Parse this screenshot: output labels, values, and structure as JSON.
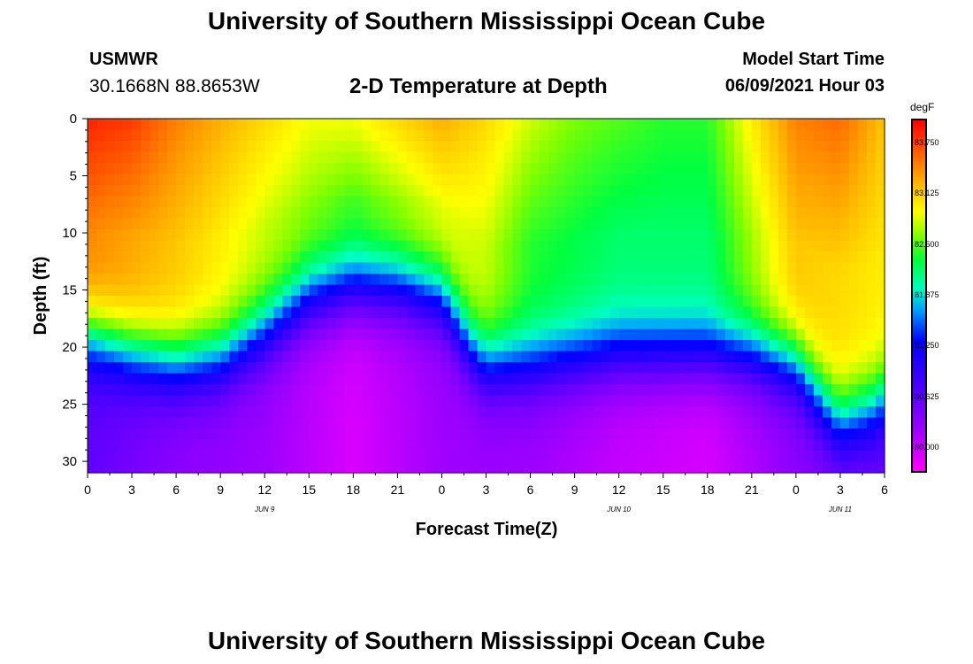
{
  "header": {
    "title": "University of Southern Mississippi Ocean Cube",
    "station": "USMWR",
    "coords": "30.1668N  88.8653W",
    "subtitle": "2-D Temperature at Depth",
    "model_label": "Model Start Time",
    "model_time": "06/09/2021 Hour 03"
  },
  "footer": {
    "title": "University of Southern Mississippi Ocean Cube"
  },
  "colorbar": {
    "unit": "degF",
    "ticks": [
      "83.750",
      "83.125",
      "82.500",
      "81.875",
      "81.250",
      "80.625",
      "80.000"
    ],
    "tick_values": [
      83.75,
      83.125,
      82.5,
      81.875,
      81.25,
      80.625,
      80.0
    ],
    "range": [
      79.7,
      84.05
    ],
    "colors": {
      "low": "#ff00ff",
      "mid": "#00ff40",
      "high": "#ff0000"
    }
  },
  "chart_data": {
    "type": "heatmap",
    "title": "2-D Temperature at Depth",
    "xlabel": "Forecast Time(Z)",
    "ylabel": "Depth (ft)",
    "x_range_hours": [
      0,
      54
    ],
    "y_range": [
      0,
      31
    ],
    "x_tick_labels": [
      "0",
      "3",
      "6",
      "9",
      "12",
      "15",
      "18",
      "21",
      "0",
      "3",
      "6",
      "9",
      "12",
      "15",
      "18",
      "21",
      "0",
      "3",
      "6"
    ],
    "y_tick_labels": [
      "0",
      "5",
      "10",
      "15",
      "20",
      "25",
      "30"
    ],
    "y_tick_values": [
      0,
      5,
      10,
      15,
      20,
      25,
      30
    ],
    "date_labels": [
      {
        "text": "JUN 9",
        "hour": 12
      },
      {
        "text": "JUN 10",
        "hour": 36
      },
      {
        "text": "JUN 11",
        "hour": 51
      }
    ],
    "unit": "degF",
    "thermocline_depth_ft": [
      [
        0,
        17.5
      ],
      [
        3,
        19
      ],
      [
        6,
        20
      ],
      [
        9,
        19.5
      ],
      [
        12,
        17
      ],
      [
        15,
        14
      ],
      [
        18,
        13
      ],
      [
        21,
        13
      ],
      [
        24,
        14
      ],
      [
        26,
        18.5
      ],
      [
        27,
        20
      ],
      [
        30,
        20
      ],
      [
        33,
        19.5
      ],
      [
        36,
        19
      ],
      [
        39,
        19
      ],
      [
        42,
        19
      ],
      [
        45,
        19
      ],
      [
        48,
        20
      ],
      [
        50,
        23.5
      ],
      [
        51,
        25
      ],
      [
        53,
        24
      ],
      [
        54,
        23
      ]
    ],
    "surface_temp_degF": [
      [
        0,
        83.9
      ],
      [
        3,
        83.8
      ],
      [
        6,
        83.5
      ],
      [
        9,
        83.3
      ],
      [
        12,
        83.1
      ],
      [
        15,
        82.9
      ],
      [
        18,
        82.9
      ],
      [
        21,
        83.1
      ],
      [
        24,
        83.3
      ],
      [
        27,
        83.1
      ],
      [
        30,
        82.8
      ],
      [
        33,
        82.6
      ],
      [
        36,
        82.5
      ],
      [
        39,
        82.4
      ],
      [
        42,
        82.4
      ],
      [
        45,
        83.0
      ],
      [
        48,
        83.5
      ],
      [
        51,
        83.6
      ],
      [
        54,
        83.2
      ]
    ],
    "mixed_layer_temp_degF": [
      [
        0,
        83.5
      ],
      [
        6,
        83.2
      ],
      [
        12,
        82.8
      ],
      [
        18,
        82.5
      ],
      [
        24,
        82.9
      ],
      [
        27,
        82.8
      ],
      [
        30,
        82.4
      ],
      [
        36,
        82.2
      ],
      [
        42,
        82.2
      ],
      [
        48,
        83.2
      ],
      [
        54,
        83.0
      ]
    ],
    "bottom_temp_degF": [
      [
        0,
        80.6
      ],
      [
        6,
        80.3
      ],
      [
        12,
        80.2
      ],
      [
        18,
        79.9
      ],
      [
        24,
        80.2
      ],
      [
        30,
        80.2
      ],
      [
        36,
        80.0
      ],
      [
        42,
        79.9
      ],
      [
        48,
        80.3
      ],
      [
        54,
        80.5
      ]
    ]
  }
}
